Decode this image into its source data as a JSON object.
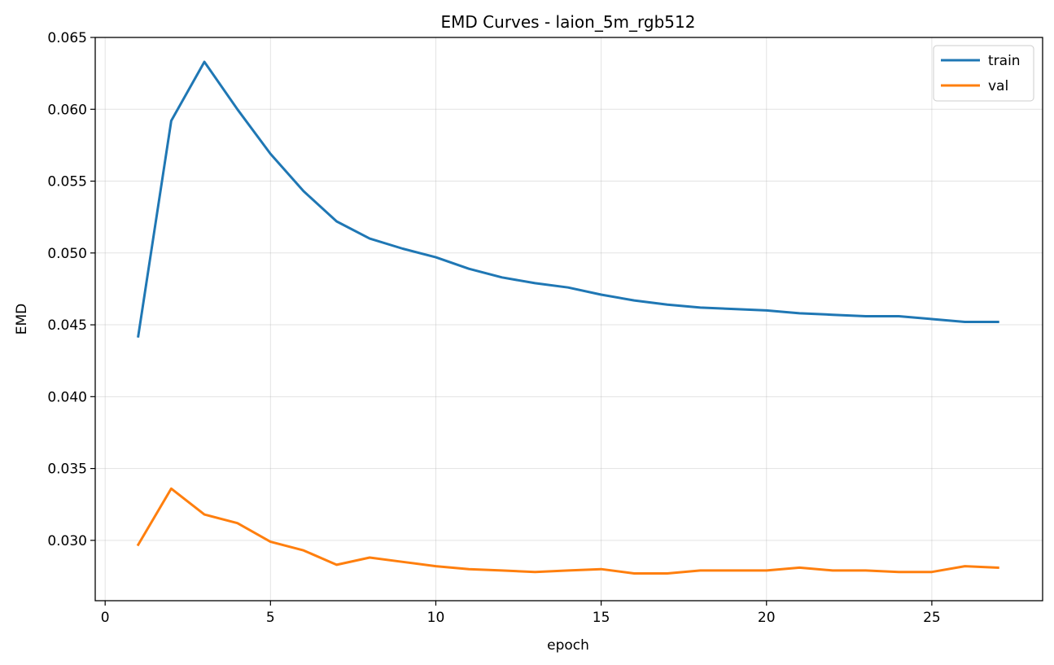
{
  "chart_data": {
    "type": "line",
    "title": "EMD Curves - laion_5m_rgb512",
    "xlabel": "epoch",
    "ylabel": "EMD",
    "xlim": [
      -0.3,
      28.35
    ],
    "ylim": [
      0.0258,
      0.065
    ],
    "xticks": [
      0,
      5,
      10,
      15,
      20,
      25
    ],
    "yticks": [
      0.03,
      0.035,
      0.04,
      0.045,
      0.05,
      0.055,
      0.06,
      0.065
    ],
    "yticks_labels": [
      "0.030",
      "0.035",
      "0.040",
      "0.045",
      "0.050",
      "0.055",
      "0.060",
      "0.065"
    ],
    "grid": true,
    "legend_position": "top-right",
    "x": [
      1,
      2,
      3,
      4,
      5,
      6,
      7,
      8,
      9,
      10,
      11,
      12,
      13,
      14,
      15,
      16,
      17,
      18,
      19,
      20,
      21,
      22,
      23,
      24,
      25,
      26,
      27
    ],
    "series": [
      {
        "name": "train",
        "color": "#1f77b4",
        "values": [
          0.0442,
          0.0592,
          0.0633,
          0.06,
          0.0569,
          0.0543,
          0.0522,
          0.051,
          0.0503,
          0.0497,
          0.0489,
          0.0483,
          0.0479,
          0.0476,
          0.0471,
          0.0467,
          0.0464,
          0.0462,
          0.0461,
          0.046,
          0.0458,
          0.0457,
          0.0456,
          0.0456,
          0.0454,
          0.0452,
          0.0452
        ]
      },
      {
        "name": "val",
        "color": "#ff7f0e",
        "values": [
          0.0297,
          0.0336,
          0.0318,
          0.0312,
          0.0299,
          0.0293,
          0.0283,
          0.0288,
          0.0285,
          0.0282,
          0.028,
          0.0279,
          0.0278,
          0.0279,
          0.028,
          0.0277,
          0.0277,
          0.0279,
          0.0279,
          0.0279,
          0.0281,
          0.0279,
          0.0279,
          0.0278,
          0.0278,
          0.0282,
          0.0281
        ]
      }
    ]
  }
}
